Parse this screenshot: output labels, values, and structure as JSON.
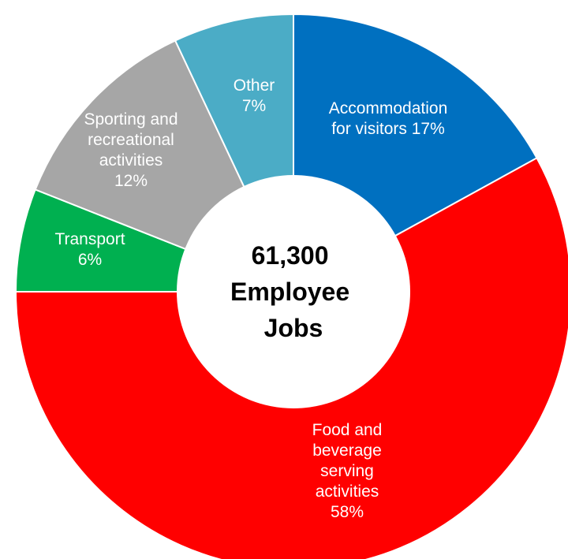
{
  "chart_data": {
    "type": "donut",
    "title": "",
    "center_label": [
      "61,300",
      "Employee",
      "Jobs"
    ],
    "start_angle_deg": 0,
    "slices": [
      {
        "name": "Accommodation for visitors",
        "value": 17,
        "color": "#0070C0",
        "label_lines": [
          "Accommodation",
          "for visitors 17%"
        ]
      },
      {
        "name": "Food and beverage serving activities",
        "value": 58,
        "color": "#FF0000",
        "label_lines": [
          "Food and",
          "beverage",
          "serving",
          "activities",
          "58%"
        ]
      },
      {
        "name": "Transport",
        "value": 6,
        "color": "#00B050",
        "label_lines": [
          "Transport",
          "6%"
        ]
      },
      {
        "name": "Sporting and recreational activities",
        "value": 12,
        "color": "#A6A6A6",
        "label_lines": [
          "Sporting and",
          "recreational",
          "activities",
          "12%"
        ]
      },
      {
        "name": "Other",
        "value": 7,
        "color": "#4BACC6",
        "label_lines": [
          "Other",
          "7%"
        ]
      }
    ]
  }
}
